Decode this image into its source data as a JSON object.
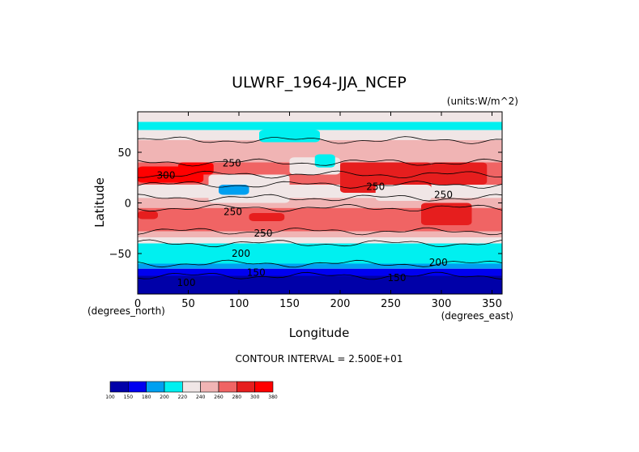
{
  "chart_data": {
    "type": "heatmap",
    "title": "ULWRF_1964-JJA_NCEP",
    "units_label": "(units:W/m^2)",
    "xlabel": "Longitude",
    "ylabel": "Latitude",
    "x_unit_label": "(degrees_east)",
    "y_unit_label": "(degrees_north)",
    "xlim": [
      0,
      360
    ],
    "ylim": [
      -90,
      90
    ],
    "x_ticks": [
      "0",
      "50",
      "100",
      "150",
      "200",
      "250",
      "300",
      "350"
    ],
    "y_ticks": [
      "50",
      "0",
      "−50"
    ],
    "contour_interval_text": "CONTOUR INTERVAL = 2.500E+01",
    "contour_labels": [
      {
        "text": "300",
        "lon": 28,
        "lat": 24
      },
      {
        "text": "250",
        "lon": 93,
        "lat": 36
      },
      {
        "text": "250",
        "lon": 235,
        "lat": 13
      },
      {
        "text": "250",
        "lon": 302,
        "lat": 5
      },
      {
        "text": "250",
        "lon": 94,
        "lat": -12
      },
      {
        "text": "250",
        "lon": 124,
        "lat": -33
      },
      {
        "text": "200",
        "lon": 102,
        "lat": -53
      },
      {
        "text": "200",
        "lon": 297,
        "lat": -62
      },
      {
        "text": "150",
        "lon": 117,
        "lat": -72
      },
      {
        "text": "150",
        "lon": 256,
        "lat": -77
      },
      {
        "text": "100",
        "lon": 48,
        "lat": -82
      }
    ],
    "colorbar": {
      "ticks": [
        "100",
        "150",
        "180",
        "200",
        "220",
        "240",
        "260",
        "280",
        "300",
        "380"
      ],
      "colors": [
        "#0000a8",
        "#0000f0",
        "#00a0f0",
        "#00f0f0",
        "#f0e6e6",
        "#f0b4b4",
        "#f06464",
        "#e61e1e",
        "#ff0000"
      ]
    },
    "lat_bands": [
      {
        "lat_min": 80,
        "lat_max": 90,
        "value": 230
      },
      {
        "lat_min": 72,
        "lat_max": 80,
        "value": 215
      },
      {
        "lat_min": 62,
        "lat_max": 72,
        "value": 230
      },
      {
        "lat_min": 50,
        "lat_max": 62,
        "value": 245
      },
      {
        "lat_min": 40,
        "lat_max": 50,
        "value": 255
      },
      {
        "lat_min": 28,
        "lat_max": 40,
        "value": 275
      },
      {
        "lat_min": 18,
        "lat_max": 28,
        "value": 270
      },
      {
        "lat_min": 5,
        "lat_max": 18,
        "value": 235
      },
      {
        "lat_min": -5,
        "lat_max": 5,
        "value": 245
      },
      {
        "lat_min": -18,
        "lat_max": -5,
        "value": 275
      },
      {
        "lat_min": -28,
        "lat_max": -18,
        "value": 270
      },
      {
        "lat_min": -34,
        "lat_max": -28,
        "value": 250
      },
      {
        "lat_min": -40,
        "lat_max": -34,
        "value": 235
      },
      {
        "lat_min": -50,
        "lat_max": -40,
        "value": 215
      },
      {
        "lat_min": -60,
        "lat_max": -50,
        "value": 210
      },
      {
        "lat_min": -65,
        "lat_max": -60,
        "value": 190
      },
      {
        "lat_min": -72,
        "lat_max": -65,
        "value": 160
      },
      {
        "lat_min": -90,
        "lat_max": -72,
        "value": 120
      }
    ],
    "regions": [
      {
        "lon_min": 0,
        "lon_max": 65,
        "lat_min": 20,
        "lat_max": 36,
        "value": 305
      },
      {
        "lon_min": 40,
        "lon_max": 75,
        "lat_min": 28,
        "lat_max": 40,
        "value": 310
      },
      {
        "lon_min": 0,
        "lon_max": 40,
        "lat_min": 5,
        "lat_max": 18,
        "value": 225
      },
      {
        "lon_min": 70,
        "lon_max": 150,
        "lat_min": 0,
        "lat_max": 28,
        "value": 220
      },
      {
        "lon_min": 80,
        "lon_max": 110,
        "lat_min": 8,
        "lat_max": 18,
        "value": 195
      },
      {
        "lon_min": 150,
        "lon_max": 200,
        "lat_min": 28,
        "lat_max": 45,
        "value": 225
      },
      {
        "lon_min": 175,
        "lon_max": 195,
        "lat_min": 35,
        "lat_max": 48,
        "value": 205
      },
      {
        "lon_min": 120,
        "lon_max": 180,
        "lat_min": 60,
        "lat_max": 72,
        "value": 215
      },
      {
        "lon_min": 200,
        "lon_max": 290,
        "lat_min": 10,
        "lat_max": 40,
        "value": 280
      },
      {
        "lon_min": 235,
        "lon_max": 290,
        "lat_min": 2,
        "lat_max": 18,
        "value": 225
      },
      {
        "lon_min": 290,
        "lon_max": 345,
        "lat_min": 18,
        "lat_max": 40,
        "value": 280
      },
      {
        "lon_min": 330,
        "lon_max": 360,
        "lat_min": 5,
        "lat_max": 18,
        "value": 220
      },
      {
        "lon_min": 280,
        "lon_max": 330,
        "lat_min": -22,
        "lat_max": 0,
        "value": 285
      },
      {
        "lon_min": 110,
        "lon_max": 145,
        "lat_min": -18,
        "lat_max": -10,
        "value": 295
      },
      {
        "lon_min": 0,
        "lon_max": 20,
        "lat_min": -16,
        "lat_max": -8,
        "value": 290
      }
    ]
  }
}
